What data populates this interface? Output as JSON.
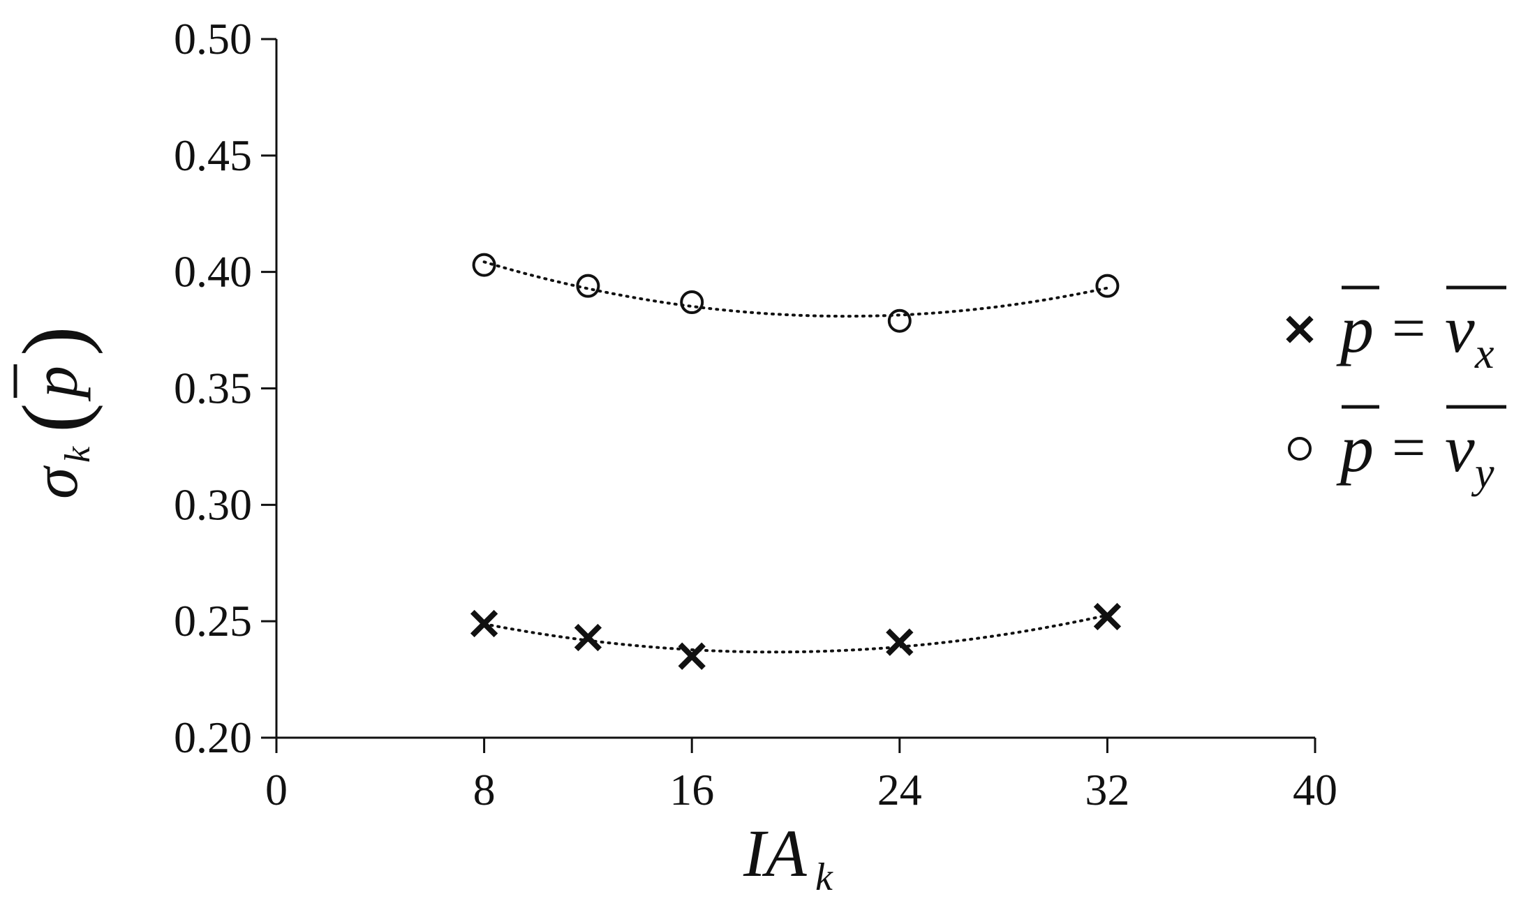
{
  "chart_data": {
    "type": "scatter",
    "title": "",
    "xlabel": "IA_k",
    "ylabel": "σ_k(p̄)",
    "x_tick_labels": [
      "0",
      "8",
      "16",
      "24",
      "32",
      "40"
    ],
    "y_tick_labels": [
      "0.20",
      "0.25",
      "0.30",
      "0.35",
      "0.40",
      "0.45",
      "0.50"
    ],
    "xlim": [
      0,
      40
    ],
    "ylim": [
      0.2,
      0.5
    ],
    "grid": false,
    "legend_position": "right",
    "series": [
      {
        "name": "p̄ = v̄_x",
        "marker": "x",
        "x": [
          8,
          12,
          16,
          24,
          32
        ],
        "y": [
          0.249,
          0.243,
          0.235,
          0.241,
          0.252
        ],
        "trendline": "dotted"
      },
      {
        "name": "p̄ = v̄_y",
        "marker": "circle",
        "x": [
          8,
          12,
          16,
          24,
          32
        ],
        "y": [
          0.403,
          0.394,
          0.387,
          0.379,
          0.394
        ],
        "trendline": "dotted"
      }
    ],
    "colors": {
      "ink": "#111111",
      "background": "#ffffff"
    }
  }
}
